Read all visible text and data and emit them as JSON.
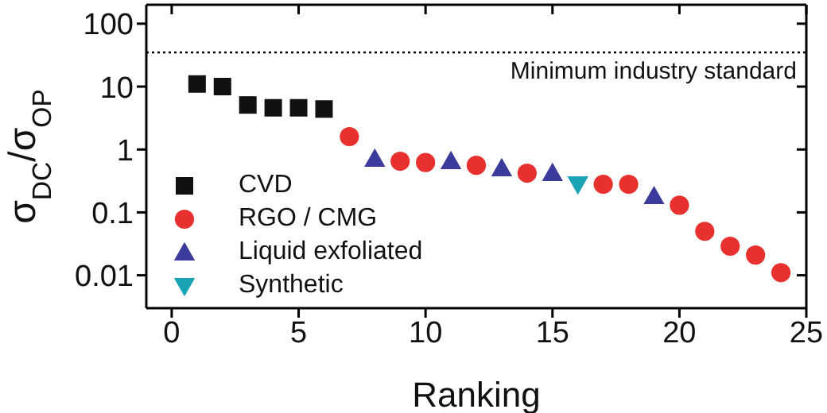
{
  "chart_data": {
    "type": "scatter",
    "xlabel": "Ranking",
    "ylabel": "σ$_{DC}$/σ$_{OP}$",
    "log": "y",
    "xlim": [
      -1,
      25
    ],
    "xticks": [
      0,
      5,
      10,
      15,
      20,
      25
    ],
    "ylim": [
      0.003,
      200
    ],
    "yticks": [
      0.01,
      0.1,
      1,
      10,
      100
    ],
    "legend": "bottom left",
    "ref_lines": [
      {
        "axis": "y",
        "value": 35,
        "label": "Minimum industry standard",
        "color": "#000000",
        "line_style": "dotted"
      }
    ],
    "series": [
      {
        "name": "CVD",
        "color": "#111111",
        "marker": "square",
        "x": [
          1,
          2,
          3,
          4,
          5,
          6
        ],
        "values": [
          11,
          10,
          5.1,
          4.6,
          4.6,
          4.4
        ]
      },
      {
        "name": "RGO / CMG",
        "color": "#e8312f",
        "marker": "circle",
        "x": [
          7,
          9,
          10,
          12,
          14,
          17,
          18,
          20,
          21,
          22,
          23,
          24
        ],
        "values": [
          1.6,
          0.65,
          0.62,
          0.56,
          0.42,
          0.28,
          0.28,
          0.13,
          0.05,
          0.029,
          0.021,
          0.011
        ]
      },
      {
        "name": "Liquid exfoliated",
        "color": "#3b3b9b",
        "marker": "triangle",
        "x": [
          8,
          11,
          13,
          15,
          19
        ],
        "values": [
          0.71,
          0.65,
          0.5,
          0.42,
          0.18
        ]
      },
      {
        "name": "Synthetic",
        "color": "#1aa3b5",
        "marker": "triangle-down",
        "x": [
          16
        ],
        "values": [
          0.28
        ]
      }
    ]
  }
}
